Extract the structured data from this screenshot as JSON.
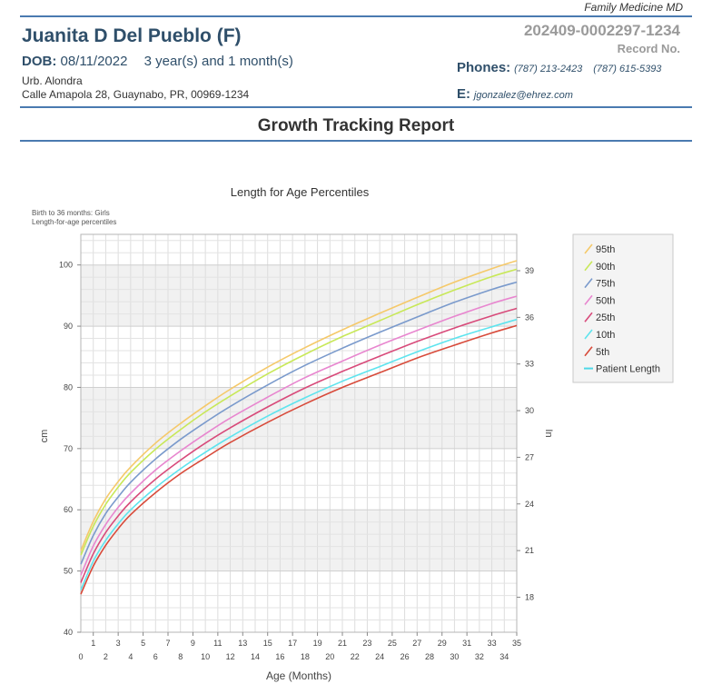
{
  "header": {
    "clinic": "Family Medicine MD",
    "patient_name": "Juanita D Del Pueblo (F)",
    "dob_label": "DOB:",
    "dob": "08/11/2022",
    "age": "3 year(s) and 1 month(s)",
    "address_line1": "Urb. Alondra",
    "address_line2": "Calle Amapola 28, Guaynabo, PR, 00969-1234",
    "record_number": "202409-0002297-1234",
    "record_label": "Record No.",
    "phones_label": "Phones:",
    "phone1": "(787) 213-2423",
    "phone2": "(787) 615-5393",
    "email_label": "E:",
    "email": "jgonzalez@ehrez.com"
  },
  "report_title": "Growth Tracking Report",
  "chart_data": {
    "type": "line",
    "title": "Length for Age Percentiles",
    "subtitle_line1": "Birth to 36 months: Girls",
    "subtitle_line2": "Length-for-age percentiles",
    "xlabel": "Age (Months)",
    "ylabel": "cm",
    "y2label": "In",
    "xlim": [
      0,
      35
    ],
    "ylim": [
      40,
      105
    ],
    "x_ticks_top": [
      "1",
      "3",
      "5",
      "7",
      "9",
      "11",
      "13",
      "15",
      "17",
      "19",
      "21",
      "23",
      "25",
      "27",
      "29",
      "31",
      "33",
      "35"
    ],
    "x_ticks_bottom": [
      "0",
      "2",
      "4",
      "6",
      "8",
      "10",
      "12",
      "14",
      "16",
      "18",
      "20",
      "22",
      "24",
      "26",
      "28",
      "30",
      "32",
      "34"
    ],
    "y_ticks": [
      "40",
      "50",
      "60",
      "70",
      "80",
      "90",
      "100"
    ],
    "y2_ticks": [
      "18",
      "21",
      "24",
      "27",
      "30",
      "33",
      "36",
      "39"
    ],
    "grid": true,
    "legend_position": "right",
    "x": [
      0,
      1,
      2,
      3,
      4,
      6,
      8,
      10,
      12,
      15,
      18,
      21,
      24,
      27,
      30,
      33,
      35
    ],
    "series": [
      {
        "name": "95th",
        "color": "#f5c96a",
        "values": [
          53.3,
          58.1,
          61.8,
          64.6,
          67.0,
          70.9,
          74.1,
          77.0,
          79.7,
          83.3,
          86.5,
          89.4,
          92.1,
          94.7,
          97.2,
          99.4,
          100.7
        ]
      },
      {
        "name": "90th",
        "color": "#c8e858",
        "values": [
          52.6,
          57.3,
          60.9,
          63.7,
          66.1,
          69.9,
          73.1,
          76.0,
          78.6,
          82.2,
          85.4,
          88.3,
          90.9,
          93.5,
          95.9,
          98.1,
          99.3
        ]
      },
      {
        "name": "75th",
        "color": "#7a9acc",
        "values": [
          51.1,
          55.8,
          59.4,
          62.1,
          64.5,
          68.3,
          71.5,
          74.3,
          76.9,
          80.4,
          83.6,
          86.4,
          89.0,
          91.5,
          93.9,
          96.0,
          97.2
        ]
      },
      {
        "name": "50th",
        "color": "#e886cf",
        "values": [
          49.3,
          54.1,
          57.6,
          60.4,
          62.7,
          66.5,
          69.6,
          72.4,
          75.0,
          78.4,
          81.6,
          84.3,
          86.9,
          89.3,
          91.6,
          93.7,
          94.9
        ]
      },
      {
        "name": "25th",
        "color": "#d84a7a",
        "values": [
          48.1,
          52.8,
          56.3,
          59.0,
          61.3,
          65.0,
          68.1,
          70.9,
          73.4,
          76.8,
          79.9,
          82.6,
          85.1,
          87.5,
          89.7,
          91.7,
          92.9
        ]
      },
      {
        "name": "10th",
        "color": "#5ee4ee",
        "values": [
          46.9,
          51.6,
          55.0,
          57.7,
          60.0,
          63.6,
          66.7,
          69.4,
          71.9,
          75.3,
          78.3,
          81.0,
          83.4,
          85.8,
          88.0,
          89.9,
          91.1
        ]
      },
      {
        "name": "5th",
        "color": "#d84a3a",
        "values": [
          46.2,
          50.8,
          54.2,
          56.9,
          59.2,
          62.8,
          65.9,
          68.5,
          71.0,
          74.3,
          77.3,
          80.0,
          82.4,
          84.8,
          86.9,
          88.9,
          90.1
        ]
      }
    ],
    "patient_series": {
      "name": "Patient Length",
      "color": "#4dd8e8"
    }
  }
}
